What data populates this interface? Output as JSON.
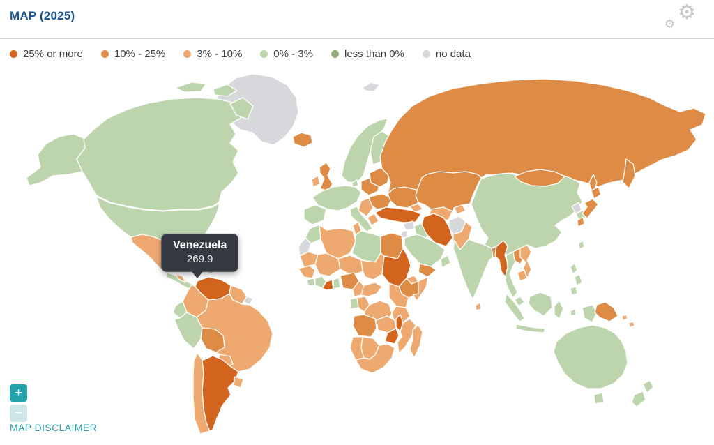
{
  "header": {
    "title": "MAP (2025)"
  },
  "legend": {
    "items": [
      {
        "key": "cat25plus",
        "label": "25% or more",
        "color": "#d2641e"
      },
      {
        "key": "cat1025",
        "label": "10% - 25%",
        "color": "#dd8b45"
      },
      {
        "key": "cat310",
        "label": "3% - 10%",
        "color": "#eda96f"
      },
      {
        "key": "cat03",
        "label": "0% - 3%",
        "color": "#bcd5ac"
      },
      {
        "key": "catlt0",
        "label": "less than 0%",
        "color": "#90ac77"
      },
      {
        "key": "nodata",
        "label": "no data",
        "color": "#d6d8db"
      }
    ]
  },
  "tooltip": {
    "country": "Venezuela",
    "value": "269.9"
  },
  "controls": {
    "zoom_in": "+",
    "zoom_out": "−"
  },
  "footer": {
    "disclaimer": "MAP DISCLAIMER"
  },
  "map": {
    "highlighted_country": "Venezuela",
    "highlighted_value": "269.9",
    "regions": {
      "greenland": "nodata",
      "svalbard": "nodata",
      "iceland": "cat1025",
      "alaska": "cat03",
      "canada": "cat03",
      "arctic-island-1": "cat03",
      "arctic-island-2": "cat03",
      "baffin-island": "cat03",
      "usa": "cat03",
      "mexico": "cat310",
      "central-america": "cat03",
      "honduras-nicaragua": "cat310",
      "cuba": "cat310",
      "hispaniola": "cat310",
      "venezuela": "cat25plus",
      "colombia": "cat310",
      "guyana-suriname": "cat310",
      "french-guiana": "nodata",
      "ecuador": "cat03",
      "peru": "cat03",
      "brazil": "cat310",
      "bolivia": "cat1025",
      "paraguay": "cat310",
      "chile": "cat310",
      "argentina": "cat25plus",
      "uruguay": "cat310",
      "uk": "cat1025",
      "ireland": "cat310",
      "scandinavia": "cat03",
      "finland": "cat03",
      "denmark": "cat03",
      "western-europe": "cat03",
      "iberia": "cat03",
      "italy": "cat03",
      "central-europe": "cat1025",
      "baltics-belarus": "cat1025",
      "romania-bulgaria": "cat1025",
      "balkans": "cat310",
      "greece": "cat310",
      "ukraine": "cat1025",
      "russia": "cat1025",
      "kamchatka": "cat1025",
      "sakhalin": "cat1025",
      "kazakhstan": "cat1025",
      "caucasus": "cat310",
      "central-asia": "cat310",
      "kyrgyzstan-tajikistan": "cat310",
      "turkey": "cat25plus",
      "syria": "nodata",
      "jordan-israel": "nodata",
      "iraq": "cat03",
      "iran": "cat25plus",
      "afghanistan": "nodata",
      "pakistan": "cat310",
      "saudi-arabia": "cat03",
      "yemen": "cat1025",
      "oman": "cat03",
      "morocco": "cat03",
      "western-sahara": "nodata",
      "mauritania": "cat310",
      "algeria": "cat310",
      "tunisia": "cat310",
      "libya": "cat03",
      "egypt": "cat1025",
      "mali": "cat310",
      "niger": "cat310",
      "chad": "cat310",
      "sudan": "cat25plus",
      "eritrea": "cat310",
      "ethiopia": "cat1025",
      "somalia": "cat310",
      "kenya-uganda": "cat310",
      "senegal-guinea": "cat310",
      "sierra-leone-liberia": "cat03",
      "ivory-coast": "cat03",
      "ghana": "cat25plus",
      "togo-benin": "cat03",
      "nigeria": "cat1025",
      "cameroon": "cat310",
      "central-african-republic": "cat310",
      "gabon": "cat03",
      "congo": "cat310",
      "drc": "cat310",
      "tanzania": "cat310",
      "angola": "cat1025",
      "zambia": "cat310",
      "malawi": "cat25plus",
      "mozambique": "cat310",
      "zimbabwe": "cat25plus",
      "namibia": "cat310",
      "botswana": "cat310",
      "south-africa": "cat310",
      "madagascar": "cat310",
      "india": "cat03",
      "sri-lanka": "cat310",
      "bangladesh": "cat1025",
      "myanmar": "cat25plus",
      "thailand": "cat03",
      "laos": "cat1025",
      "vietnam": "cat310",
      "cambodia": "cat310",
      "malaysia": "cat03",
      "china": "cat03",
      "mongolia": "cat1025",
      "taiwan": "cat03",
      "north-korea": "nodata",
      "south-korea": "cat03",
      "japan-hokkaido": "cat1025",
      "japan-honshu": "cat1025",
      "japan-kyushu": "cat1025",
      "philippines-1": "cat03",
      "philippines-2": "cat03",
      "philippines-3": "cat03",
      "sumatra": "cat03",
      "java": "cat03",
      "borneo": "cat03",
      "sulawesi": "cat03",
      "moluccas": "cat03",
      "west-papua": "cat03",
      "papua-new-guinea": "cat1025",
      "solomon-1": "cat310",
      "solomon-2": "cat310",
      "australia": "cat03",
      "tasmania": "cat03",
      "new-zealand-north": "cat03",
      "new-zealand-south": "cat03"
    }
  }
}
